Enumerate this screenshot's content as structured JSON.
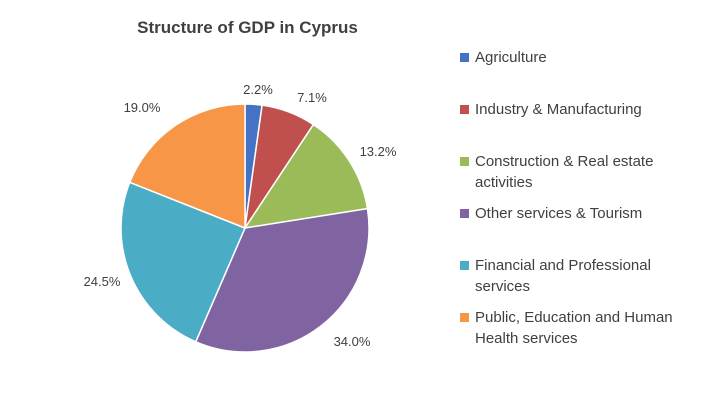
{
  "chart_data": {
    "type": "pie",
    "title": "Structure of GDP in Cyprus",
    "categories": [
      "Agriculture",
      "Industry & Manufacturing",
      "Construction & Real estate activities",
      "Other services & Tourism",
      "Financial and Professional services",
      "Public, Education and Human Health services"
    ],
    "values": [
      2.2,
      7.1,
      13.2,
      34.0,
      24.5,
      19.0
    ],
    "labels": [
      "2.2%",
      "7.1%",
      "13.2%",
      "34.0%",
      "24.5%",
      "19.0%"
    ],
    "colors": [
      "#4472c4",
      "#c0504d",
      "#9bbb59",
      "#8064a2",
      "#4bacc6",
      "#f79646"
    ],
    "legend_position": "right"
  }
}
